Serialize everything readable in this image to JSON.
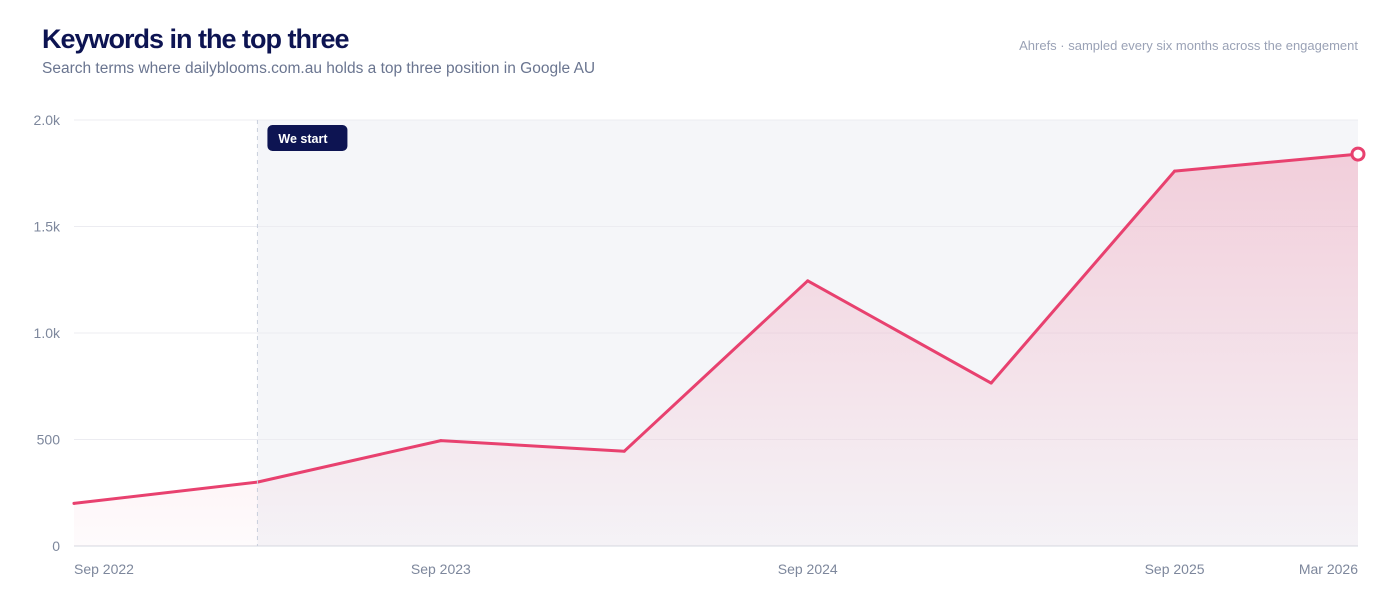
{
  "header": {
    "title": "Keywords in the top three",
    "subtitle": "Search terms where dailyblooms.com.au holds a top three position in Google AU",
    "source": "Ahrefs · sampled every six months across the engagement"
  },
  "chart_data": {
    "type": "area",
    "title": "Keywords in the top three",
    "subtitle": "Search terms where dailyblooms.com.au holds a top three position in Google AU",
    "x": [
      "2022-09",
      "2023-03",
      "2023-09",
      "2024-03",
      "2024-09",
      "2025-03",
      "2025-09",
      "2026-03"
    ],
    "series": [
      {
        "values": [
          200,
          300,
          495,
          445,
          1245,
          765,
          1760,
          1840
        ]
      }
    ],
    "x_ticks": [
      {
        "x": "2022-09",
        "label": "Sep 2022"
      },
      {
        "x": "2023-09",
        "label": "Sep 2023"
      },
      {
        "x": "2024-09",
        "label": "Sep 2024"
      },
      {
        "x": "2025-09",
        "label": "Sep 2025"
      },
      {
        "x": "2026-03",
        "label": "Mar 2026"
      }
    ],
    "y_ticks": [
      {
        "value": 0,
        "label": "0"
      },
      {
        "value": 500,
        "label": "500"
      },
      {
        "value": 1000,
        "label": "1.0k"
      },
      {
        "value": 1500,
        "label": "1.5k"
      },
      {
        "value": 2000,
        "label": "2.0k"
      }
    ],
    "ylim": [
      0,
      2000
    ],
    "grid": true,
    "annotation": {
      "x": "2023-03",
      "label": "We start"
    },
    "colors": {
      "line": "#e8416f",
      "highlight_region": "#f5f6f9",
      "badge": "#0d1452",
      "grid": "#ececf1",
      "axis": "#d5d8e0"
    }
  }
}
